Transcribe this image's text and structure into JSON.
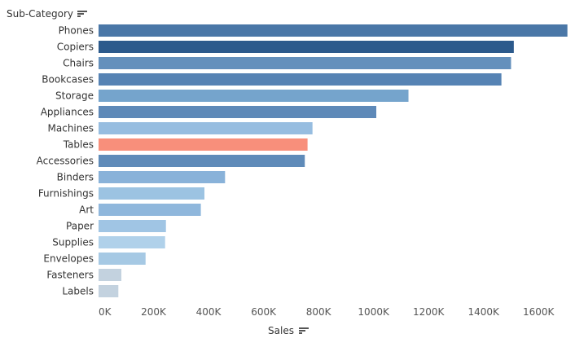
{
  "chart_data": {
    "type": "bar",
    "orientation": "horizontal",
    "ylabel": "Sub-Category",
    "xlabel": "Sales",
    "xlim": [
      0,
      1700000
    ],
    "xticks": [
      0,
      200000,
      400000,
      600000,
      800000,
      1000000,
      1200000,
      1400000,
      1600000
    ],
    "xtick_labels": [
      "0K",
      "200K",
      "400K",
      "600K",
      "800K",
      "1000K",
      "1200K",
      "1400K",
      "1600K"
    ],
    "grid": false,
    "categories": [
      "Phones",
      "Copiers",
      "Chairs",
      "Bookcases",
      "Storage",
      "Appliances",
      "Machines",
      "Tables",
      "Accessories",
      "Binders",
      "Furnishings",
      "Art",
      "Paper",
      "Supplies",
      "Envelopes",
      "Fasteners",
      "Labels"
    ],
    "values": [
      1705000,
      1510000,
      1500000,
      1465000,
      1127000,
      1010000,
      778000,
      760000,
      750000,
      460000,
      385000,
      372000,
      245000,
      242000,
      171000,
      83000,
      72000
    ],
    "colors": [
      "#4a77a7",
      "#2c5a8c",
      "#6490bc",
      "#5683b4",
      "#75a4cc",
      "#5e89b8",
      "#97bde0",
      "#f88f7b",
      "#5f8bb9",
      "#89b2d9",
      "#9cc3e2",
      "#8fb7dc",
      "#a0c5e4",
      "#b0d1ea",
      "#a6c9e4",
      "#c3d2df",
      "#c3d2df"
    ]
  }
}
